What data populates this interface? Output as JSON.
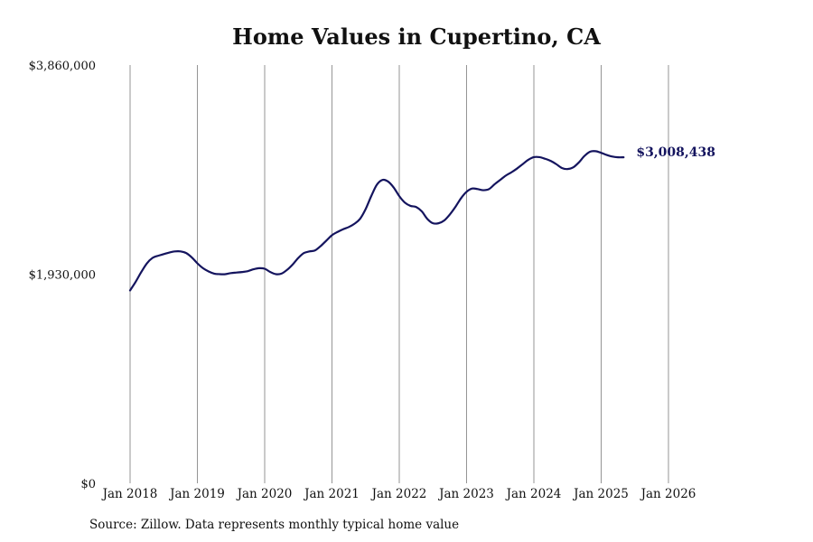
{
  "chart_data": {
    "type": "line",
    "title": "Home Values in Cupertino, CA",
    "source": "Source: Zillow. Data represents monthly typical home value",
    "ylim": [
      0,
      3860000
    ],
    "yticks": [
      "$0",
      "$1,930,000",
      "$3,860,000"
    ],
    "ytick_values": [
      0,
      1930000,
      3860000
    ],
    "xticks": [
      "Jan 2018",
      "Jan 2019",
      "Jan 2020",
      "Jan 2021",
      "Jan 2022",
      "Jan 2023",
      "Jan 2024",
      "Jan 2025",
      "Jan 2026"
    ],
    "grid": "vertical lines at each January",
    "end_label": "$3,008,438",
    "line_color": "#14145e",
    "series": [
      {
        "values": [
          [
            "2018-01",
            1780000
          ],
          [
            "2018-02",
            1860000
          ],
          [
            "2018-03",
            1950000
          ],
          [
            "2018-04",
            2030000
          ],
          [
            "2018-05",
            2080000
          ],
          [
            "2018-06",
            2100000
          ],
          [
            "2018-07",
            2115000
          ],
          [
            "2018-08",
            2130000
          ],
          [
            "2018-09",
            2140000
          ],
          [
            "2018-10",
            2140000
          ],
          [
            "2018-11",
            2125000
          ],
          [
            "2018-12",
            2085000
          ],
          [
            "2019-01",
            2030000
          ],
          [
            "2019-02",
            1985000
          ],
          [
            "2019-03",
            1955000
          ],
          [
            "2019-04",
            1935000
          ],
          [
            "2019-05",
            1930000
          ],
          [
            "2019-06",
            1930000
          ],
          [
            "2019-07",
            1940000
          ],
          [
            "2019-08",
            1945000
          ],
          [
            "2019-09",
            1950000
          ],
          [
            "2019-10",
            1958000
          ],
          [
            "2019-11",
            1975000
          ],
          [
            "2019-12",
            1985000
          ],
          [
            "2020-01",
            1980000
          ],
          [
            "2020-02",
            1950000
          ],
          [
            "2020-03",
            1930000
          ],
          [
            "2020-04",
            1935000
          ],
          [
            "2020-05",
            1970000
          ],
          [
            "2020-06",
            2020000
          ],
          [
            "2020-07",
            2080000
          ],
          [
            "2020-08",
            2125000
          ],
          [
            "2020-09",
            2140000
          ],
          [
            "2020-10",
            2150000
          ],
          [
            "2020-11",
            2190000
          ],
          [
            "2020-12",
            2240000
          ],
          [
            "2021-01",
            2290000
          ],
          [
            "2021-02",
            2320000
          ],
          [
            "2021-03",
            2345000
          ],
          [
            "2021-04",
            2365000
          ],
          [
            "2021-05",
            2395000
          ],
          [
            "2021-06",
            2440000
          ],
          [
            "2021-07",
            2530000
          ],
          [
            "2021-08",
            2650000
          ],
          [
            "2021-09",
            2755000
          ],
          [
            "2021-10",
            2800000
          ],
          [
            "2021-11",
            2785000
          ],
          [
            "2021-12",
            2730000
          ],
          [
            "2022-01",
            2650000
          ],
          [
            "2022-02",
            2590000
          ],
          [
            "2022-03",
            2560000
          ],
          [
            "2022-04",
            2550000
          ],
          [
            "2022-05",
            2510000
          ],
          [
            "2022-06",
            2440000
          ],
          [
            "2022-07",
            2400000
          ],
          [
            "2022-08",
            2400000
          ],
          [
            "2022-09",
            2425000
          ],
          [
            "2022-10",
            2480000
          ],
          [
            "2022-11",
            2550000
          ],
          [
            "2022-12",
            2630000
          ],
          [
            "2023-01",
            2690000
          ],
          [
            "2023-02",
            2720000
          ],
          [
            "2023-03",
            2715000
          ],
          [
            "2023-04",
            2705000
          ],
          [
            "2023-05",
            2715000
          ],
          [
            "2023-06",
            2760000
          ],
          [
            "2023-07",
            2800000
          ],
          [
            "2023-08",
            2840000
          ],
          [
            "2023-09",
            2870000
          ],
          [
            "2023-10",
            2905000
          ],
          [
            "2023-11",
            2945000
          ],
          [
            "2023-12",
            2985000
          ],
          [
            "2024-01",
            3010000
          ],
          [
            "2024-02",
            3010000
          ],
          [
            "2024-03",
            2995000
          ],
          [
            "2024-04",
            2975000
          ],
          [
            "2024-05",
            2945000
          ],
          [
            "2024-06",
            2910000
          ],
          [
            "2024-07",
            2900000
          ],
          [
            "2024-08",
            2915000
          ],
          [
            "2024-09",
            2960000
          ],
          [
            "2024-10",
            3020000
          ],
          [
            "2024-11",
            3060000
          ],
          [
            "2024-12",
            3065000
          ],
          [
            "2025-01",
            3050000
          ],
          [
            "2025-02",
            3030000
          ],
          [
            "2025-03",
            3015000
          ],
          [
            "2025-04",
            3008438
          ],
          [
            "2025-05",
            3008438
          ]
        ]
      }
    ]
  }
}
